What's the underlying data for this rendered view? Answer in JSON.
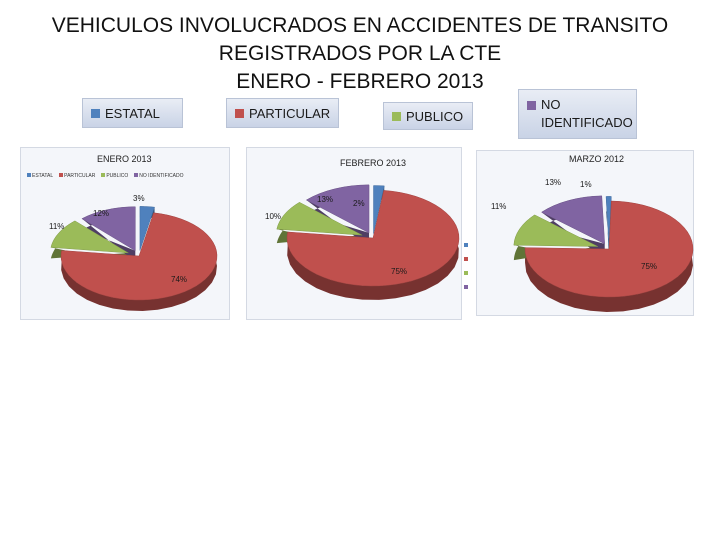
{
  "title_lines": [
    "VEHICULOS INVOLUCRADOS EN ACCIDENTES DE TRANSITO",
    "REGISTRADOS POR LA CTE",
    "ENERO  - FEBRERO 2013"
  ],
  "legend": [
    {
      "label": "ESTATAL",
      "color": "#4f81bd"
    },
    {
      "label": "PARTICULAR",
      "color": "#c0504d"
    },
    {
      "label": "PUBLICO",
      "color": "#9bbb59"
    },
    {
      "label": "NO IDENTIFICADO",
      "label_line1": "NO",
      "label_line2": "IDENTIFICADO",
      "color": "#8064a2"
    }
  ],
  "panel_legend_labels": [
    "ESTATAL",
    "PARTICULAR",
    "PUBLICO",
    "NO IDENTIFICADO"
  ],
  "chart_data": [
    {
      "type": "pie",
      "title": "ENERO 2013",
      "categories": [
        "ESTATAL",
        "PARTICULAR",
        "PUBLICO",
        "NO IDENTIFICADO"
      ],
      "values": [
        3,
        74,
        11,
        12
      ],
      "labels": [
        "3%",
        "74%",
        "11%",
        "12%"
      ],
      "colors": [
        "#4f81bd",
        "#c0504d",
        "#9bbb59",
        "#8064a2"
      ],
      "legend_position": "top"
    },
    {
      "type": "pie",
      "title": "FEBRERO 2013",
      "categories": [
        "ESTATAL",
        "PARTICULAR",
        "PUBLICO",
        "NO IDENTIFICADO"
      ],
      "values": [
        2,
        75,
        10,
        13
      ],
      "labels": [
        "2%",
        "75%",
        "10%",
        "13%"
      ],
      "colors": [
        "#4f81bd",
        "#c0504d",
        "#9bbb59",
        "#8064a2"
      ],
      "legend_position": "right"
    },
    {
      "type": "pie",
      "title": "MARZO 2012",
      "categories": [
        "ESTATAL",
        "PARTICULAR",
        "PUBLICO",
        "NO IDENTIFICADO"
      ],
      "values": [
        1,
        75,
        11,
        13
      ],
      "labels": [
        "1%",
        "75%",
        "11%",
        "13%"
      ],
      "colors": [
        "#4f81bd",
        "#c0504d",
        "#9bbb59",
        "#8064a2"
      ],
      "legend_position": "none"
    }
  ]
}
